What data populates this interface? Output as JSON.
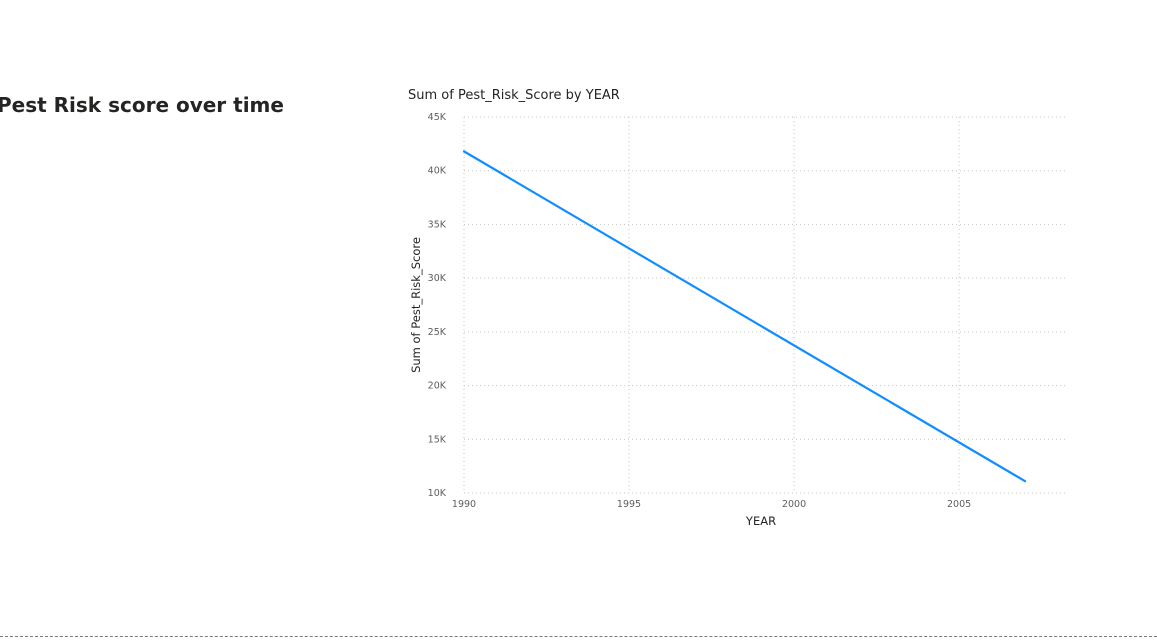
{
  "page": {
    "title": "Pest Risk score over time"
  },
  "chart_data": {
    "type": "line",
    "title": "Sum of Pest_Risk_Score by YEAR",
    "xlabel": "YEAR",
    "ylabel": "Sum of Pest_Risk_Score",
    "xlim": [
      1990,
      2008.3
    ],
    "ylim": [
      10000,
      45000
    ],
    "x_ticks": [
      1990,
      1995,
      2000,
      2005
    ],
    "x_tick_labels": [
      "1990",
      "1995",
      "2000",
      "2005"
    ],
    "y_ticks": [
      10000,
      15000,
      20000,
      25000,
      30000,
      35000,
      40000,
      45000
    ],
    "y_tick_labels": [
      "10K",
      "15K",
      "20K",
      "25K",
      "30K",
      "35K",
      "40K",
      "45K"
    ],
    "grid": true,
    "series": [
      {
        "color": "#118DFF",
        "points": [
          {
            "x": 1990,
            "y": 41800
          },
          {
            "x": 2007,
            "y": 11100
          }
        ]
      }
    ]
  }
}
